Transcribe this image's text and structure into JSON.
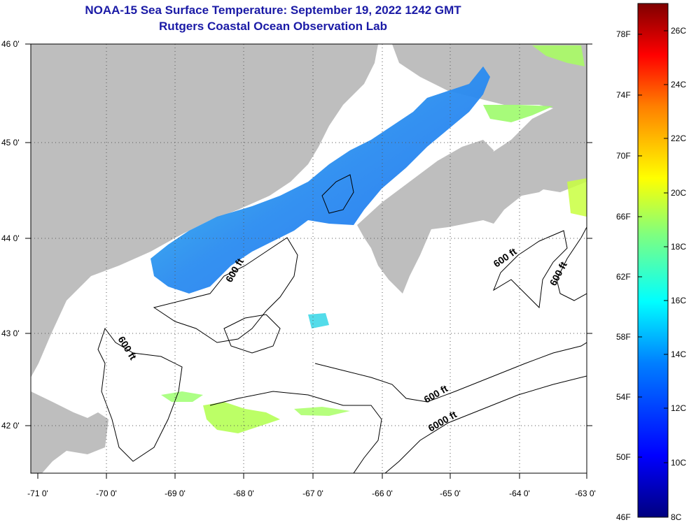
{
  "title": {
    "line1": "NOAA-15 Sea Surface Temperature:  September 19, 2022 1242 GMT",
    "line2": "Rutgers Coastal Ocean Observation Lab"
  },
  "map": {
    "lat_ticks": [
      "46 0'",
      "45 0'",
      "44 0'",
      "43 0'",
      "42 0'"
    ],
    "lon_ticks": [
      "-71 0'",
      "-70 0'",
      "-69 0'",
      "-68 0'",
      "-67 0'",
      "-66 0'",
      "-65 0'",
      "-64 0'",
      "-63 0'"
    ],
    "lat_range": [
      41.5,
      46.0
    ],
    "lon_range": [
      -71.0,
      -63.0
    ],
    "contour_labels": [
      "600 ft",
      "600 ft",
      "600 ft",
      "600 ft",
      "600 ft",
      "6000 ft"
    ],
    "land_color": "#bebebe",
    "ocean_no_data_color": "#ffffff"
  },
  "colorbar": {
    "fahrenheit_labels": [
      "78F",
      "74F",
      "70F",
      "66F",
      "62F",
      "58F",
      "54F",
      "50F",
      "46F"
    ],
    "celsius_labels": [
      "26C",
      "24C",
      "22C",
      "20C",
      "18C",
      "16C",
      "14C",
      "12C",
      "10C",
      "8C"
    ],
    "celsius_range": [
      8,
      27
    ],
    "colors": [
      "#00007f",
      "#0000ff",
      "#007fff",
      "#00ffff",
      "#7fff7f",
      "#ffff00",
      "#ff7f00",
      "#ff0000",
      "#7f0000"
    ]
  }
}
